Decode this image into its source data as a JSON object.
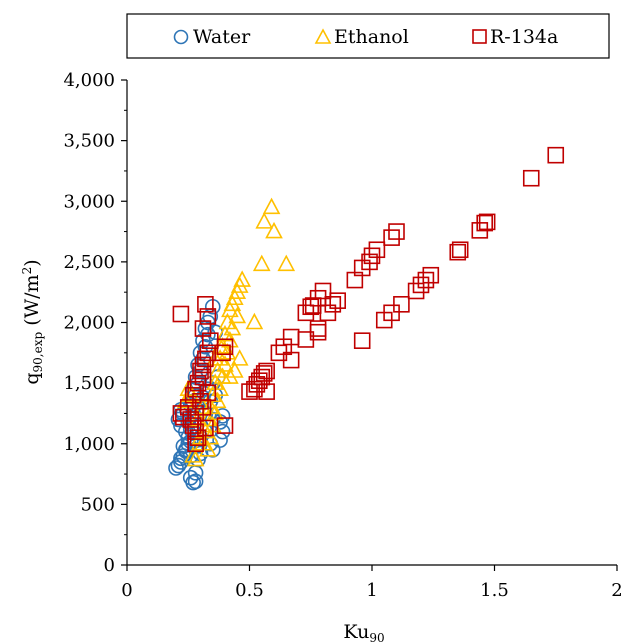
{
  "chart_data": {
    "type": "scatter",
    "xlabel": "Ku",
    "xlabel_sub": "90",
    "ylabel": "q",
    "ylabel_sub": "90,exp",
    "ylabel_unit": " (W/m",
    "ylabel_unit_sup": "2",
    "ylabel_unit_close": ")",
    "xlim": [
      0,
      2
    ],
    "ylim": [
      0,
      4000
    ],
    "x_ticks": [
      0,
      0.5,
      1,
      1.5,
      2
    ],
    "x_tick_labels": [
      "0",
      "0.5",
      "1",
      "1.5",
      "2"
    ],
    "y_ticks": [
      0,
      500,
      1000,
      1500,
      2000,
      2500,
      3000,
      3500,
      4000
    ],
    "y_tick_labels": [
      "0",
      "500",
      "1,000",
      "1,500",
      "2,000",
      "2,500",
      "3,000",
      "3,500",
      "4,000"
    ],
    "grid": false,
    "legend_position": "top",
    "series": [
      {
        "name": "Water",
        "marker": "circle",
        "color": "#2E75B6",
        "points": [
          [
            0.2,
            800
          ],
          [
            0.21,
            820
          ],
          [
            0.22,
            850
          ],
          [
            0.22,
            880
          ],
          [
            0.23,
            900
          ],
          [
            0.24,
            940
          ],
          [
            0.23,
            980
          ],
          [
            0.25,
            1000
          ],
          [
            0.25,
            1050
          ],
          [
            0.24,
            1100
          ],
          [
            0.26,
            1120
          ],
          [
            0.22,
            1150
          ],
          [
            0.21,
            1200
          ],
          [
            0.23,
            1250
          ],
          [
            0.22,
            1280
          ],
          [
            0.24,
            1300
          ],
          [
            0.26,
            1320
          ],
          [
            0.27,
            1350
          ],
          [
            0.28,
            1400
          ],
          [
            0.27,
            1450
          ],
          [
            0.29,
            1500
          ],
          [
            0.28,
            1550
          ],
          [
            0.3,
            1600
          ],
          [
            0.29,
            1650
          ],
          [
            0.31,
            1700
          ],
          [
            0.3,
            1750
          ],
          [
            0.32,
            1800
          ],
          [
            0.31,
            1850
          ],
          [
            0.33,
            1900
          ],
          [
            0.32,
            1950
          ],
          [
            0.34,
            2050
          ],
          [
            0.35,
            2130
          ],
          [
            0.33,
            2000
          ],
          [
            0.36,
            1920
          ],
          [
            0.3,
            1150
          ],
          [
            0.32,
            1100
          ],
          [
            0.34,
            1000
          ],
          [
            0.35,
            950
          ],
          [
            0.27,
            680
          ],
          [
            0.28,
            690
          ],
          [
            0.26,
            720
          ],
          [
            0.28,
            760
          ],
          [
            0.29,
            870
          ],
          [
            0.3,
            920
          ],
          [
            0.26,
            1020
          ],
          [
            0.38,
            1030
          ],
          [
            0.39,
            1100
          ],
          [
            0.38,
            1180
          ],
          [
            0.39,
            1230
          ],
          [
            0.35,
            1200
          ],
          [
            0.25,
            1180
          ],
          [
            0.27,
            1250
          ],
          [
            0.29,
            1300
          ],
          [
            0.31,
            1380
          ],
          [
            0.33,
            1450
          ],
          [
            0.35,
            1500
          ],
          [
            0.37,
            1550
          ],
          [
            0.34,
            1350
          ],
          [
            0.36,
            1400
          ],
          [
            0.32,
            1250
          ],
          [
            0.24,
            950
          ],
          [
            0.26,
            900
          ],
          [
            0.28,
            980
          ],
          [
            0.3,
            1050
          ]
        ]
      },
      {
        "name": "Ethanol",
        "marker": "triangle",
        "color": "#FFC000",
        "points": [
          [
            0.59,
            2950
          ],
          [
            0.56,
            2830
          ],
          [
            0.6,
            2750
          ],
          [
            0.55,
            2480
          ],
          [
            0.65,
            2480
          ],
          [
            0.47,
            2350
          ],
          [
            0.46,
            2300
          ],
          [
            0.45,
            2250
          ],
          [
            0.44,
            2200
          ],
          [
            0.43,
            2150
          ],
          [
            0.42,
            2100
          ],
          [
            0.45,
            2050
          ],
          [
            0.41,
            2000
          ],
          [
            0.43,
            1950
          ],
          [
            0.4,
            1900
          ],
          [
            0.42,
            1850
          ],
          [
            0.39,
            1800
          ],
          [
            0.41,
            1750
          ],
          [
            0.38,
            1700
          ],
          [
            0.4,
            1650
          ],
          [
            0.37,
            1600
          ],
          [
            0.39,
            1550
          ],
          [
            0.36,
            1500
          ],
          [
            0.38,
            1450
          ],
          [
            0.35,
            1400
          ],
          [
            0.37,
            1350
          ],
          [
            0.34,
            1300
          ],
          [
            0.36,
            1250
          ],
          [
            0.33,
            1200
          ],
          [
            0.35,
            1150
          ],
          [
            0.32,
            1100
          ],
          [
            0.34,
            1050
          ],
          [
            0.31,
            1000
          ],
          [
            0.33,
            950
          ],
          [
            0.27,
            900
          ],
          [
            0.28,
            870
          ],
          [
            0.3,
            1050
          ],
          [
            0.26,
            1400
          ],
          [
            0.25,
            1450
          ],
          [
            0.24,
            1350
          ],
          [
            0.29,
            1200
          ],
          [
            0.31,
            1300
          ],
          [
            0.44,
            1600
          ],
          [
            0.46,
            1700
          ],
          [
            0.52,
            2000
          ],
          [
            0.42,
            1550
          ],
          [
            0.36,
            1700
          ],
          [
            0.38,
            1800
          ]
        ]
      },
      {
        "name": "R-134a",
        "marker": "square",
        "color": "#C00000",
        "points": [
          [
            1.75,
            3380
          ],
          [
            1.65,
            3190
          ],
          [
            1.47,
            2830
          ],
          [
            1.46,
            2820
          ],
          [
            1.44,
            2760
          ],
          [
            1.36,
            2600
          ],
          [
            1.35,
            2580
          ],
          [
            1.24,
            2390
          ],
          [
            1.22,
            2350
          ],
          [
            1.2,
            2310
          ],
          [
            1.18,
            2260
          ],
          [
            1.12,
            2150
          ],
          [
            1.08,
            2080
          ],
          [
            1.05,
            2020
          ],
          [
            0.96,
            1850
          ],
          [
            1.1,
            2750
          ],
          [
            1.08,
            2700
          ],
          [
            1.02,
            2600
          ],
          [
            1.0,
            2550
          ],
          [
            0.99,
            2500
          ],
          [
            0.96,
            2450
          ],
          [
            0.93,
            2350
          ],
          [
            0.86,
            2180
          ],
          [
            0.84,
            2150
          ],
          [
            0.82,
            2080
          ],
          [
            0.8,
            2260
          ],
          [
            0.78,
            2200
          ],
          [
            0.76,
            2140
          ],
          [
            0.75,
            2130
          ],
          [
            0.73,
            2080
          ],
          [
            0.73,
            1860
          ],
          [
            0.78,
            1950
          ],
          [
            0.78,
            1920
          ],
          [
            0.67,
            1690
          ],
          [
            0.67,
            1880
          ],
          [
            0.64,
            1800
          ],
          [
            0.62,
            1750
          ],
          [
            0.57,
            1600
          ],
          [
            0.56,
            1580
          ],
          [
            0.55,
            1550
          ],
          [
            0.54,
            1520
          ],
          [
            0.53,
            1490
          ],
          [
            0.52,
            1450
          ],
          [
            0.5,
            1430
          ],
          [
            0.57,
            1430
          ],
          [
            0.22,
            2070
          ],
          [
            0.32,
            2150
          ],
          [
            0.33,
            2050
          ],
          [
            0.31,
            1950
          ],
          [
            0.34,
            1850
          ],
          [
            0.33,
            1750
          ],
          [
            0.32,
            1700
          ],
          [
            0.31,
            1650
          ],
          [
            0.3,
            1600
          ],
          [
            0.31,
            1550
          ],
          [
            0.29,
            1500
          ],
          [
            0.28,
            1450
          ],
          [
            0.27,
            1400
          ],
          [
            0.3,
            1350
          ],
          [
            0.31,
            1300
          ],
          [
            0.28,
            1250
          ],
          [
            0.26,
            1200
          ],
          [
            0.25,
            1300
          ],
          [
            0.22,
            1250
          ],
          [
            0.23,
            1220
          ],
          [
            0.27,
            1150
          ],
          [
            0.28,
            1100
          ],
          [
            0.29,
            1050
          ],
          [
            0.28,
            1000
          ],
          [
            0.32,
            1130
          ],
          [
            0.4,
            1800
          ],
          [
            0.39,
            1750
          ],
          [
            0.4,
            1150
          ],
          [
            0.33,
            1420
          ]
        ]
      }
    ]
  }
}
